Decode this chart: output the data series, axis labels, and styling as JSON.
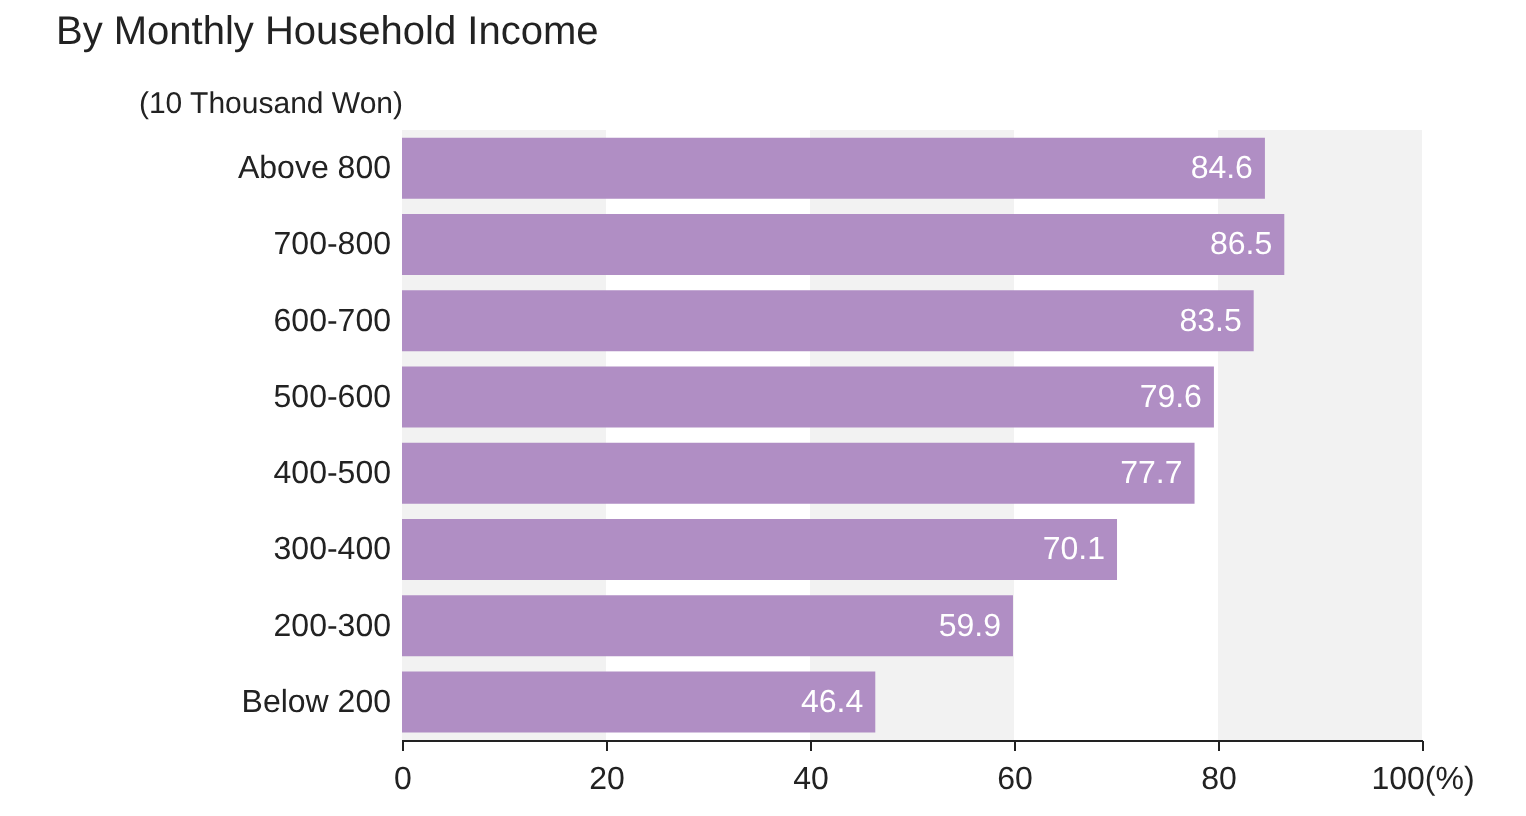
{
  "chart_data": {
    "type": "bar",
    "orientation": "horizontal",
    "title": "By Monthly Household Income",
    "ylabel": "(10 Thousand Won)",
    "categories": [
      "Above 800",
      "700-800",
      "600-700",
      "500-600",
      "400-500",
      "300-400",
      "200-300",
      "Below 200"
    ],
    "values": [
      84.6,
      86.5,
      83.5,
      79.6,
      77.7,
      70.1,
      59.9,
      46.4
    ],
    "color": "#b08ec4",
    "xlim": [
      0,
      100
    ],
    "xticks": [
      0,
      20,
      40,
      60,
      80,
      {
        "value": 100,
        "label": "100(%)"
      }
    ],
    "bands": [
      {
        "axis": "x",
        "from": 0,
        "to": 20,
        "color": "#f2f2f2"
      },
      {
        "axis": "x",
        "from": 40,
        "to": 60,
        "color": "#f2f2f2"
      },
      {
        "axis": "x",
        "from": 80,
        "to": 100,
        "color": "#f2f2f2"
      }
    ],
    "data_labels": true
  }
}
